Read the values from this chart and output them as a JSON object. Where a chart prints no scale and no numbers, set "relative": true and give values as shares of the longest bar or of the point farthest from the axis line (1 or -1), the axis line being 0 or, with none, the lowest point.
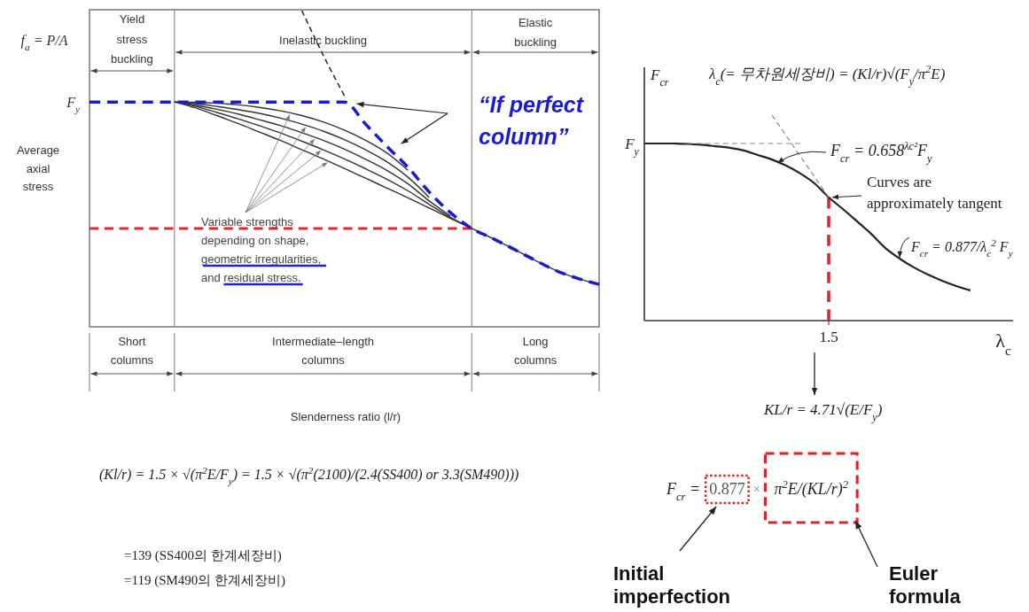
{
  "chart_data": [
    {
      "type": "line",
      "relative": true,
      "xlabel": "Slenderness ratio (l/r)",
      "ylabel": "Average\naxial\nstress",
      "categories": [
        null,
        null,
        null,
        null,
        null,
        null,
        null,
        null,
        null,
        null,
        null,
        null,
        null,
        null,
        null,
        null,
        null,
        null,
        null,
        null,
        null,
        null,
        null,
        null,
        null
      ],
      "series": [
        {
          "color": "#333333",
          "values": [
            null,
            null,
            null,
            null,
            0.711,
            0.71,
            0.707,
            0.702,
            0.694,
            0.683,
            0.668,
            0.648,
            0.622,
            0.59,
            0.55,
            0.495,
            null,
            null,
            null,
            null,
            null,
            null,
            null,
            null,
            null
          ]
        },
        {
          "color": "#333333",
          "values": [
            null,
            null,
            null,
            null,
            0.711,
            0.706,
            0.697,
            0.687,
            0.675,
            0.66,
            0.641,
            0.619,
            0.592,
            0.56,
            0.522,
            0.473,
            0.409,
            null,
            null,
            null,
            null,
            null,
            null,
            null,
            null
          ]
        },
        {
          "color": "#333333",
          "values": [
            null,
            null,
            null,
            null,
            0.711,
            0.701,
            0.688,
            0.673,
            0.655,
            0.636,
            0.614,
            0.59,
            0.562,
            0.53,
            0.495,
            0.452,
            0.398,
            0.35,
            null,
            null,
            null,
            null,
            null,
            null,
            null
          ]
        },
        {
          "color": "#333333",
          "values": [
            null,
            null,
            null,
            null,
            0.711,
            0.697,
            0.678,
            0.658,
            0.636,
            0.613,
            0.587,
            0.56,
            0.531,
            0.5,
            0.467,
            0.43,
            0.387,
            0.346,
            0.311,
            null,
            null,
            null,
            null,
            null,
            null
          ]
        },
        {
          "color": "#333333",
          "values": [
            null,
            null,
            null,
            null,
            0.711,
            0.692,
            0.668,
            0.643,
            0.616,
            0.589,
            0.56,
            0.531,
            0.501,
            0.47,
            0.439,
            0.408,
            0.376,
            0.343,
            0.311,
            0.279,
            0.245,
            0.21,
            0.177,
            0.153,
            0.134
          ]
        },
        {
          "color": "#222222",
          "line_style": "dashed",
          "values": [
            null,
            null,
            null,
            null,
            null,
            null,
            null,
            null,
            null,
            null,
            1,
            0.86,
            0.731,
            null,
            null,
            null,
            null,
            null,
            null,
            null,
            null,
            null,
            null,
            null,
            null
          ]
        },
        {
          "name": "“If perfect column”",
          "color": "#1a1ad6",
          "line_style": "dashed",
          "values": [
            0.711,
            0.711,
            0.711,
            0.711,
            0.711,
            0.711,
            0.711,
            0.711,
            0.711,
            0.711,
            0.711,
            0.711,
            0.711,
            0.641,
            0.571,
            0.504,
            0.426,
            0.361,
            0.311,
            0.279,
            0.245,
            0.21,
            0.177,
            0.153,
            0.134
          ]
        }
      ],
      "ref_lines": [
        {
          "axis": "y",
          "value": 0.311,
          "color": "#e8262a",
          "line_style": "dashed"
        }
      ],
      "annotations": [
        "f$_{a}$ = P/A",
        "F$_{y}$",
        "Yield\nstress\nbuckling",
        "Inelastic buckling",
        "Elastic\nbuckling",
        "Short\ncolumns",
        "Intermediate–length\ncolumns",
        "Long\ncolumns",
        "Variable strengths\ndepending on shape,\ngeometric irregularities,\nand residual stress.",
        "(Kl/r) = 1.5 × √(π$^{2}$E/F$_{y}$) = 1.5 × √(π$^{2}$(2100)/(2.4(SS400) or 3.3(SM490)))",
        "=139 (SS400의 한계세장비)",
        "=119 (SM490의 한계세장비)"
      ]
    },
    {
      "type": "line",
      "relative": true,
      "xlabel": "λ$_{c}$",
      "ylabel": "F$_{cr}$",
      "categories": [
        null,
        null,
        null,
        null,
        null,
        null,
        null,
        null,
        null,
        null,
        null,
        null,
        null,
        null,
        null,
        null,
        null,
        null,
        null,
        null,
        null,
        null,
        null,
        null,
        null,
        null,
        null
      ],
      "series": [
        {
          "color": "#222222",
          "values": [
            0.862,
            0.862,
            0.862,
            0.86,
            0.856,
            0.849,
            0.841,
            0.828,
            0.806,
            0.784,
            0.754,
            0.716,
            0.668,
            0.6,
            0.543,
            0.483,
            0.422,
            0.353,
            0.302,
            0.259,
            0.224,
            0.194,
            0.168,
            0.147,
            null,
            null,
            null
          ]
        },
        {
          "color": "#888888",
          "line_style": "dashed",
          "values": [
            null,
            null,
            null,
            0.862,
            0.862,
            0.862,
            0.862,
            0.862,
            0.862,
            0.862,
            0.862,
            0.862,
            null,
            null,
            null,
            null,
            null,
            null,
            null,
            null,
            null,
            null,
            null,
            null,
            null,
            null,
            null
          ]
        },
        {
          "color": "#888888",
          "line_style": "dashed",
          "values": [
            null,
            null,
            null,
            null,
            null,
            null,
            null,
            null,
            null,
            1,
            0.9,
            0.8,
            0.7,
            0.6,
            null,
            null,
            null,
            null,
            null,
            null,
            null,
            null,
            null,
            null,
            null,
            null,
            null
          ]
        }
      ],
      "ref_lines": [
        {
          "axis": "x",
          "label": "1.5",
          "color": "#e0202a",
          "line_style": "dashed"
        }
      ],
      "annotations": [
        "λ$_{c}$(= 무차원세장비) = (Kl/r)√(F$_{y}$/π$^{2}$E)",
        "F$_{y}$",
        "F$_{cr}$ = 0.658$^{λc²}$F$_{y}$",
        "Curves are\napproximately tangent",
        "F$_{cr}$ = 0.877/λ$_{c}$$^{2}$ F$_{y}$",
        "KL/r = 4.71√(E/F$_{y}$)",
        "F$_{cr}$ =",
        "0.877",
        "×",
        "π$^{2}$E/(KL/r)$^{2}$",
        "Initial\nimperfection",
        "Euler\nformula"
      ]
    }
  ]
}
